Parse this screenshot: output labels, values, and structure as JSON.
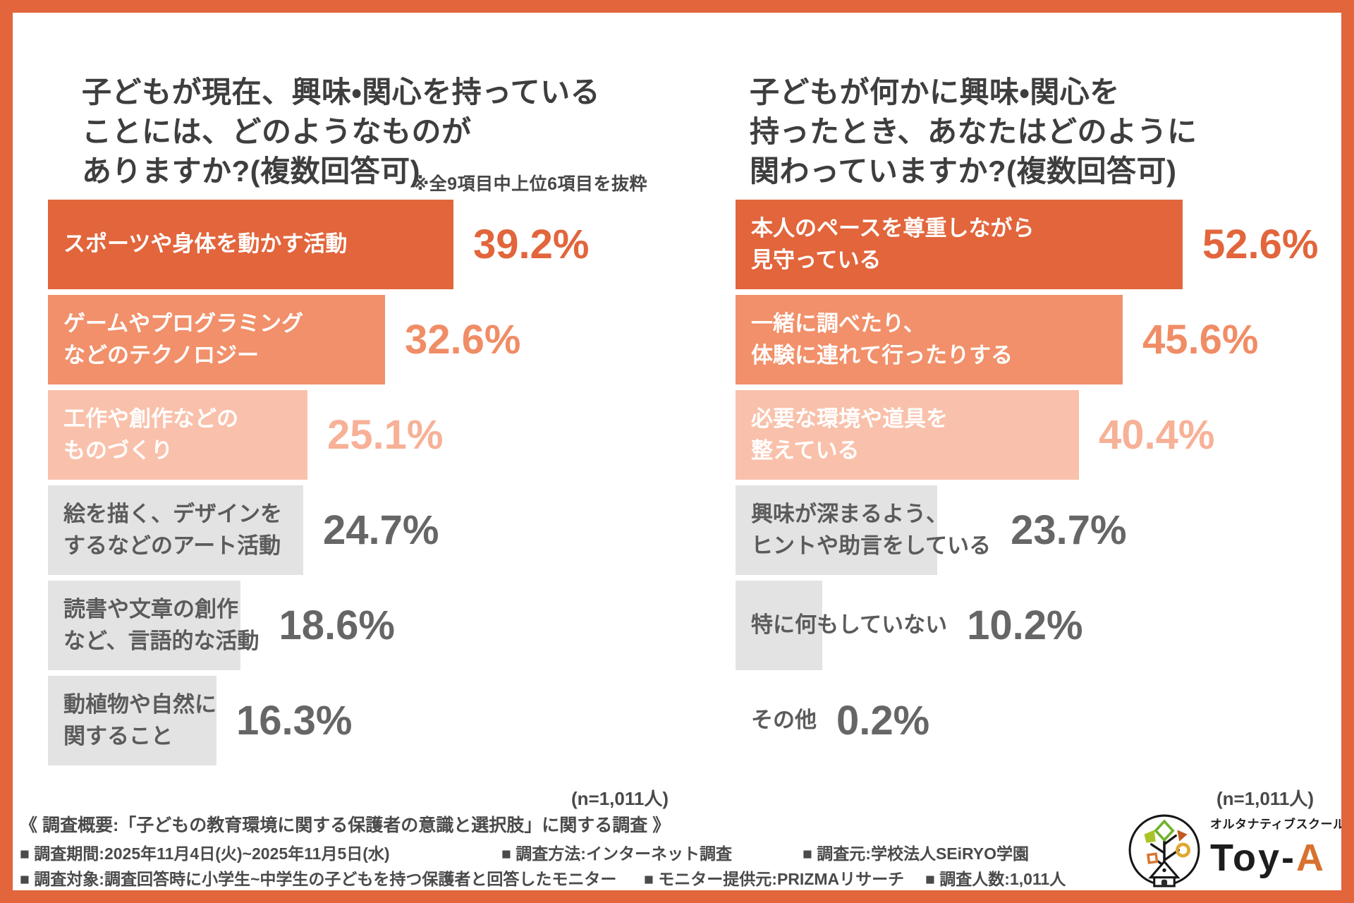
{
  "chart_data": [
    {
      "type": "bar",
      "orientation": "horizontal",
      "title": "子どもが現在、興味・関心を持っている\nことには、どのようなものが\nありますか?(複数回答可)",
      "note": "※全9項目中上位6項目を抜粋",
      "n_label": "(n=1,011人)",
      "unit": "%",
      "categories": [
        "スポーツや身体を動かす活動",
        "ゲームやプログラミングなどのテクノロジー",
        "工作や創作などのものづくり",
        "絵を描く、デザインをするなどのアート活動",
        "読書や文章の創作など、言語的な活動",
        "動植物や自然に関すること"
      ],
      "values": [
        39.2,
        32.6,
        25.1,
        24.7,
        18.6,
        16.3
      ],
      "rows": [
        {
          "label": "スポーツや身体を動かす活動",
          "value": 39.2,
          "pct": "39.2%",
          "tone": "dark"
        },
        {
          "label": "ゲームやプログラミング\nなどのテクノロジー",
          "value": 32.6,
          "pct": "32.6%",
          "tone": "mid"
        },
        {
          "label": "工作や創作などの\nものづくり",
          "value": 25.1,
          "pct": "25.1%",
          "tone": "light"
        },
        {
          "label": "絵を描く、デザインを\nするなどのアート活動",
          "value": 24.7,
          "pct": "24.7%",
          "tone": "gray"
        },
        {
          "label": "読書や文章の創作\nなど、言語的な活動",
          "value": 18.6,
          "pct": "18.6%",
          "tone": "gray"
        },
        {
          "label": "動植物や自然に\n関すること",
          "value": 16.3,
          "pct": "16.3%",
          "tone": "gray"
        }
      ]
    },
    {
      "type": "bar",
      "orientation": "horizontal",
      "title": "子どもが何かに興味・関心を\n持ったとき、あなたはどのように\n関わっていますか?(複数回答可)",
      "n_label": "(n=1,011人)",
      "unit": "%",
      "categories": [
        "本人のペースを尊重しながら見守っている",
        "一緒に調べたり、体験に連れて行ったりする",
        "必要な環境や道具を整えている",
        "興味が深まるよう、ヒントや助言をしている",
        "特に何もしていない",
        "その他"
      ],
      "values": [
        52.6,
        45.6,
        40.4,
        23.7,
        10.2,
        0.2
      ],
      "rows": [
        {
          "label": "本人のペースを尊重しながら\n見守っている",
          "value": 52.6,
          "pct": "52.6%",
          "tone": "dark"
        },
        {
          "label": "一緒に調べたり、\n体験に連れて行ったりする",
          "value": 45.6,
          "pct": "45.6%",
          "tone": "mid"
        },
        {
          "label": "必要な環境や道具を\n整えている",
          "value": 40.4,
          "pct": "40.4%",
          "tone": "light"
        },
        {
          "label": "興味が深まるよう、\nヒントや助言をしている",
          "value": 23.7,
          "pct": "23.7%",
          "tone": "gray"
        },
        {
          "label": "特に何もしていない",
          "value": 10.2,
          "pct": "10.2%",
          "tone": "gray"
        },
        {
          "label": "その他",
          "value": 0.2,
          "pct": "0.2%",
          "tone": "none"
        }
      ]
    }
  ],
  "footer": {
    "summary": "《 調査概要:「子どもの教育環境に関する保護者の意識と選択肢」に関する調査 》",
    "row2": [
      "■ 調査期間:2025年11月4日(火)~2025年11月5日(水)",
      "■ 調査方法:インターネット調査",
      "■ 調査元:学校法人SEiRYO学園"
    ],
    "row3": [
      "■ 調査対象:調査回答時に小学生~中学生の子どもを持つ保護者と回答したモニター",
      "■ モニター提供元:PRIZMAリサーチ",
      "■ 調査人数:1,011人"
    ]
  },
  "logo": {
    "tagline": "オルタナティブスクール",
    "brand_prefix": "Toy-",
    "brand_accent": "A",
    "icon": "tree-house-icon"
  },
  "colors": {
    "frame": "#E2653C",
    "bar_dark": "#E2653C",
    "bar_mid": "#F1906A",
    "bar_light": "#F9C1AB",
    "bar_gray": "#E3E3E3",
    "pct_gray": "#666666",
    "logo_accent": "#D8702F"
  }
}
